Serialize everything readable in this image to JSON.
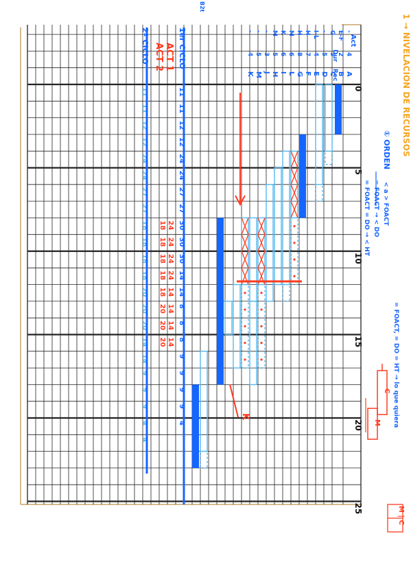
{
  "page": {
    "title": "1 → NIVELACIÓN DE RECURSOS",
    "order_heading": "① ORDEN",
    "order_rules": [
      "< a > FOACT",
      "= FOACT → < DO",
      "= FOACT = DO → < HT"
    ],
    "tie_note": "= FOACT, = DO = HT → lo que quiera",
    "mini_c": "C",
    "mini_m": "M",
    "mini_legend": "M | C",
    "act_label_1": "ACT 1",
    "act_label_2": "ACT 2",
    "mark_k": "K",
    "small_note": "B2t"
  },
  "table": {
    "headers": [
      "Act",
      "Dur",
      "Rec"
    ],
    "rows": [
      {
        "act": "-",
        "dur": "4",
        "rec": "A"
      },
      {
        "act": "E-F",
        "dur": "2",
        "rec": "B"
      },
      {
        "act": "G",
        "dur": "5",
        "rec": "C"
      },
      {
        "act": "-",
        "dur": "5",
        "rec": "D"
      },
      {
        "act": "I-L",
        "dur": "4",
        "rec": "E"
      },
      {
        "act": "H",
        "dur": "7",
        "rec": "F"
      },
      {
        "act": "H",
        "dur": "8",
        "rec": "G"
      },
      {
        "act": "M",
        "dur": "6",
        "rec": "L"
      },
      {
        "act": "K",
        "dur": "6",
        "rec": "I"
      },
      {
        "act": "M",
        "dur": "5",
        "rec": "H"
      },
      {
        "act": "-",
        "dur": "3",
        "rec": "J"
      },
      {
        "act": "-",
        "dur": "5",
        "rec": "M"
      },
      {
        "act": "-",
        "dur": "4",
        "rec": "K"
      }
    ],
    "cycle_row_1": "1er CICLO",
    "cycle_row_2": "2º CICLO"
  },
  "axis": {
    "ticks": [
      "0",
      "5",
      "10",
      "15",
      "20",
      "25"
    ]
  },
  "resources": {
    "cycle1": [
      "11",
      "11",
      "12",
      "12",
      "24",
      "24",
      "27",
      "27",
      "30",
      "30",
      "30",
      "14",
      "14",
      "8",
      "8",
      "8",
      "9",
      "9",
      "9",
      "9",
      "4"
    ],
    "act1": [
      "24",
      "24",
      "24",
      "24",
      "14",
      "14",
      "14",
      "14"
    ],
    "act2": [
      "18",
      "18",
      "18",
      "18",
      "18",
      "20",
      "20",
      "20"
    ],
    "cycle2": [
      "11",
      "11",
      "12",
      "12",
      "24",
      "24",
      "27",
      "27",
      "18",
      "18",
      "18",
      "18",
      "20",
      "20",
      "20",
      "14",
      "14",
      "9",
      "9",
      "9",
      "4",
      "4"
    ]
  },
  "colors": {
    "blue": "#1565ff",
    "light_blue": "#55b8f0",
    "red": "#ff3b1f",
    "orange": "#f5a623",
    "grid": "#222222"
  }
}
